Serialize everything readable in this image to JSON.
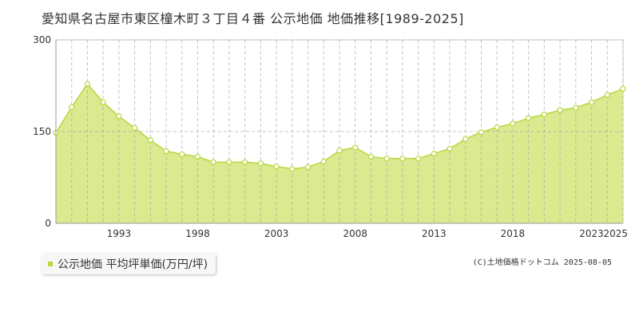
{
  "title": "愛知県名古屋市東区橦木町３丁目４番 公示地価 地価推移[1989-2025]",
  "legend": "公示地価 平均坪単価(万円/坪)",
  "credit": "(C)土地価格ドットコム 2025-08-05",
  "colors": {
    "fill": "#dbe98f",
    "line": "#b5d93e",
    "marker": "#ffffff"
  },
  "chart_data": {
    "type": "area",
    "x": [
      1989,
      1990,
      1991,
      1992,
      1993,
      1994,
      1995,
      1996,
      1997,
      1998,
      1999,
      2000,
      2001,
      2002,
      2003,
      2004,
      2005,
      2006,
      2007,
      2008,
      2009,
      2010,
      2011,
      2012,
      2013,
      2014,
      2015,
      2016,
      2017,
      2018,
      2019,
      2020,
      2021,
      2022,
      2023,
      2024,
      2025
    ],
    "series": [
      {
        "values": [
          148,
          190,
          228,
          198,
          175,
          156,
          136,
          118,
          113,
          109,
          100,
          100,
          100,
          98,
          93,
          89,
          92,
          101,
          119,
          124,
          109,
          106,
          106,
          106,
          114,
          122,
          138,
          149,
          157,
          163,
          172,
          178,
          185,
          189,
          198,
          210,
          220
        ]
      }
    ],
    "xticks": [
      "1993",
      "1998",
      "2003",
      "2008",
      "2013",
      "2018",
      "2023",
      "2025"
    ],
    "yticks": [
      "0",
      "150",
      "300"
    ],
    "ylim": [
      0,
      300
    ],
    "xlim": [
      1989,
      2025
    ],
    "grid": true
  }
}
